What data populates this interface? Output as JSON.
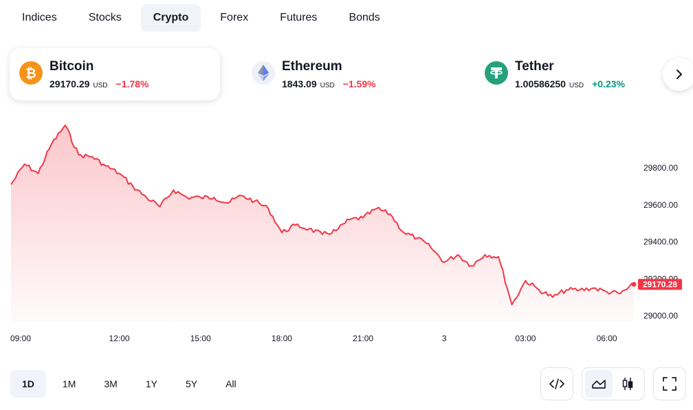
{
  "tabs": [
    {
      "label": "Indices"
    },
    {
      "label": "Stocks"
    },
    {
      "label": "Crypto",
      "active": true
    },
    {
      "label": "Forex"
    },
    {
      "label": "Futures"
    },
    {
      "label": "Bonds"
    }
  ],
  "tickers": [
    {
      "name": "Bitcoin",
      "price": "29170.29",
      "currency": "USD",
      "change": "−1.78%",
      "direction": "down",
      "icon": "bitcoin-icon",
      "color": "#f7931a",
      "selected": true
    },
    {
      "name": "Ethereum",
      "price": "1843.09",
      "currency": "USD",
      "change": "−1.59%",
      "direction": "down",
      "icon": "ethereum-icon",
      "color": "#627eea",
      "selected": false
    },
    {
      "name": "Tether",
      "price": "1.00586250",
      "currency": "USD",
      "change": "+0.23%",
      "direction": "up",
      "icon": "tether-icon",
      "color": "#26a17b",
      "selected": false
    }
  ],
  "chart_data": {
    "type": "area",
    "series_color": "#f23645",
    "y_ticks": [
      "29800.00",
      "29600.00",
      "29400.00",
      "29200.00",
      "29000.00"
    ],
    "ylim": [
      28950,
      30050
    ],
    "x_ticks": [
      "09:00",
      "12:00",
      "15:00",
      "18:00",
      "21:00",
      "3",
      "03:00",
      "06:00"
    ],
    "last_price_label": "29170.28",
    "x": [
      "08:00",
      "08:30",
      "09:00",
      "09:30",
      "10:00",
      "10:30",
      "11:00",
      "11:30",
      "12:00",
      "12:30",
      "13:00",
      "13:30",
      "14:00",
      "14:30",
      "15:00",
      "15:30",
      "16:00",
      "16:30",
      "17:00",
      "17:30",
      "18:00",
      "18:30",
      "19:00",
      "19:30",
      "20:00",
      "20:30",
      "21:00",
      "21:30",
      "22:00",
      "22:30",
      "23:00",
      "23:30",
      "00:00",
      "00:30",
      "01:00",
      "01:30",
      "02:00",
      "02:30",
      "03:00",
      "03:30",
      "04:00",
      "04:30",
      "05:00",
      "05:30",
      "06:00",
      "06:30",
      "07:00"
    ],
    "values": [
      29710,
      29820,
      29770,
      29930,
      30030,
      29870,
      29860,
      29810,
      29770,
      29700,
      29640,
      29590,
      29680,
      29640,
      29640,
      29640,
      29610,
      29650,
      29620,
      29580,
      29450,
      29490,
      29470,
      29440,
      29460,
      29520,
      29530,
      29580,
      29550,
      29450,
      29420,
      29370,
      29290,
      29330,
      29270,
      29330,
      29320,
      29060,
      29190,
      29140,
      29100,
      29140,
      29140,
      29150,
      29130,
      29120,
      29170
    ]
  },
  "ranges": [
    {
      "label": "1D",
      "active": true
    },
    {
      "label": "1M"
    },
    {
      "label": "3M"
    },
    {
      "label": "1Y"
    },
    {
      "label": "5Y"
    },
    {
      "label": "All"
    }
  ]
}
